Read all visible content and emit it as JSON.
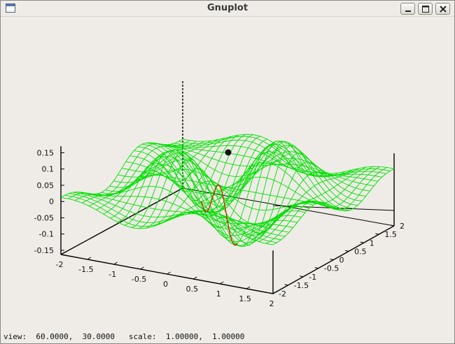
{
  "window": {
    "title": "Gnuplot",
    "buttons": {
      "minimize": "minimize-icon",
      "maximize": "maximize-icon",
      "close": "close-icon"
    }
  },
  "plot": {
    "type": "3d-surface-wireframe",
    "colors": {
      "surface": "#00e000",
      "curve": "#cc2200",
      "marker": "#111111",
      "axes": "#000000"
    },
    "z_ticks": [
      "0.15",
      "0.1",
      "0.05",
      "0",
      "-0.05",
      "-0.1",
      "-0.15"
    ],
    "x_ticks": [
      "-2",
      "-1.5",
      "-1",
      "-0.5",
      "0",
      "0.5",
      "1",
      "1.5",
      "2"
    ],
    "y_ticks": [
      "2",
      "1.5",
      "1",
      "0.5",
      "0",
      "-0.5",
      "-1",
      "-1.5",
      "-2"
    ],
    "x_range": [
      -2,
      2
    ],
    "y_range": [
      -2,
      2
    ],
    "z_range": [
      -0.15,
      0.15
    ],
    "view": {
      "rot_x": 60,
      "rot_z": 30,
      "scale": 1,
      "scale_z": 1
    }
  },
  "status": {
    "view_label": "view:",
    "view_values": "60.0000,  30.0000",
    "scale_label": "scale:",
    "scale_values": "1.00000,  1.00000"
  }
}
